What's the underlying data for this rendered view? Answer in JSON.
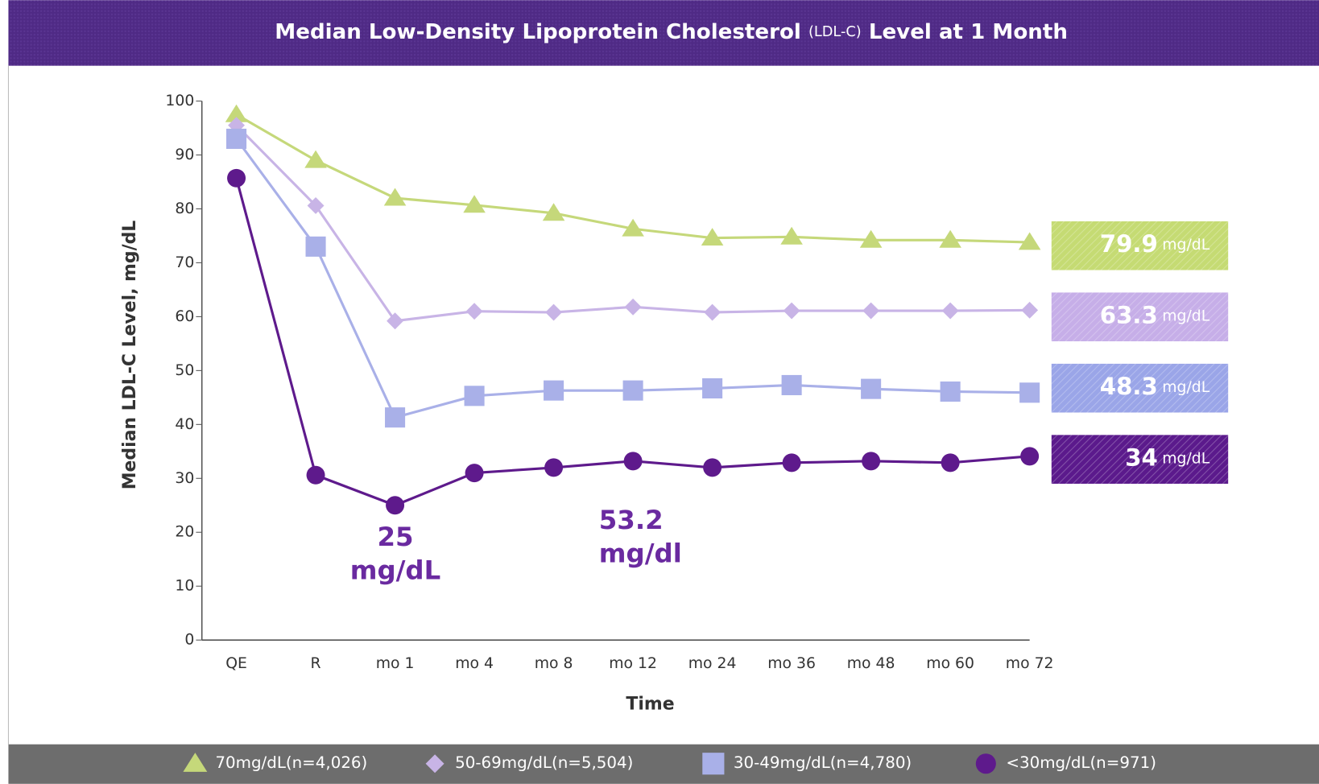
{
  "chart_data": {
    "type": "line",
    "title": "Median Low-Density Lipoprotein Cholesterol",
    "title_abbrev": "(LDL-C)",
    "title_end": "Level at 1 Month",
    "y_label": "Median LDL-C Level, mg/dL",
    "x_label": "Time",
    "categories": [
      "QE",
      "R",
      "mo 1",
      "mo 4",
      "mo 8",
      "mo 12",
      "mo 24",
      "mo 36",
      "mo 48",
      "mo 60",
      "mo 72"
    ],
    "ylim": [
      0,
      100
    ],
    "yticks": [
      0,
      10,
      20,
      30,
      40,
      50,
      60,
      70,
      80,
      90,
      100
    ],
    "series": [
      {
        "name": "70mg/dL(n=4,026)",
        "color": "#c5d87a",
        "marker": "triangle",
        "values": [
          97.5,
          89,
          82,
          80.7,
          79.2,
          76.3,
          74.6,
          74.8,
          74.2,
          74.2,
          73.8
        ]
      },
      {
        "name": "50-69mg/dL(n=5,504)",
        "color": "#c8b4e6",
        "marker": "diamond",
        "values": [
          95.5,
          80.6,
          59.2,
          61,
          60.8,
          61.8,
          60.8,
          61.1,
          61.1,
          61.1,
          61.2
        ]
      },
      {
        "name": "30-49mg/dL(n=4,780)",
        "color": "#a9b0e8",
        "marker": "square",
        "values": [
          93,
          73,
          41.3,
          45.3,
          46.3,
          46.3,
          46.7,
          47.3,
          46.6,
          46.1,
          45.9
        ]
      },
      {
        "name": "<30mg/dL(n=971)",
        "color": "#5e1a8c",
        "marker": "circle",
        "values": [
          85.7,
          30.6,
          25,
          31,
          32,
          33.2,
          32,
          32.9,
          33.2,
          32.9,
          34.1
        ]
      }
    ],
    "badges": [
      {
        "value": 79.9,
        "unit": "mg/dL",
        "color": "#c5db73"
      },
      {
        "value": 63.3,
        "unit": "mg/dL",
        "color": "#c6aee8"
      },
      {
        "value": 48.3,
        "unit": "mg/dL",
        "color": "#9aa5e8"
      },
      {
        "value": 34,
        "unit": "mg/dL",
        "color": "#5b1a8c"
      }
    ],
    "annotations": [
      {
        "lines": [
          "25",
          "mg/dL"
        ]
      },
      {
        "lines": [
          "53.2",
          "mg/dl"
        ]
      }
    ]
  }
}
